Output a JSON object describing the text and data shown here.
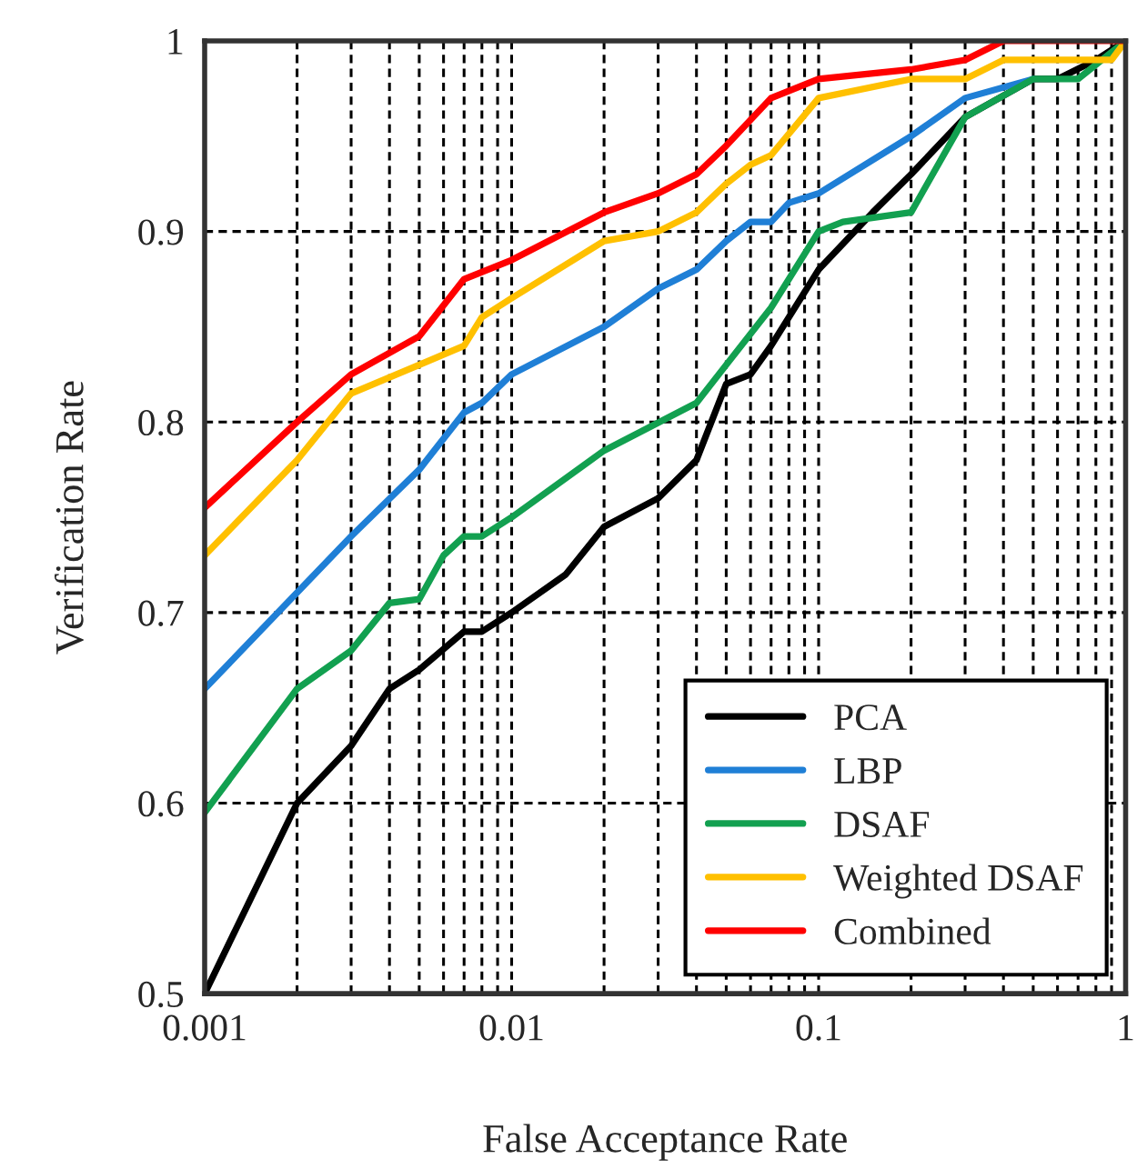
{
  "chart_data": {
    "type": "line",
    "xlabel": "False Acceptance Rate",
    "ylabel": "Verification Rate",
    "log": "x",
    "grid": true,
    "legend": "bottom right",
    "line_style": "solid",
    "marker": "none",
    "xlim": [
      0.001,
      1
    ],
    "ylim": [
      0.5,
      1
    ],
    "xticks": [
      0.001,
      {
        "value": 0.002,
        "label": null
      },
      {
        "value": 0.003,
        "label": null
      },
      {
        "value": 0.004,
        "label": null
      },
      {
        "value": 0.005,
        "label": null
      },
      {
        "value": 0.006,
        "label": null
      },
      {
        "value": 0.007,
        "label": null
      },
      {
        "value": 0.008,
        "label": null
      },
      {
        "value": 0.009,
        "label": null
      },
      0.01,
      {
        "value": 0.02,
        "label": null
      },
      {
        "value": 0.03,
        "label": null
      },
      {
        "value": 0.04,
        "label": null
      },
      {
        "value": 0.05,
        "label": null
      },
      {
        "value": 0.06,
        "label": null
      },
      {
        "value": 0.07,
        "label": null
      },
      {
        "value": 0.08,
        "label": null
      },
      {
        "value": 0.09,
        "label": null
      },
      0.1,
      {
        "value": 0.2,
        "label": null
      },
      {
        "value": 0.3,
        "label": null
      },
      {
        "value": 0.4,
        "label": null
      },
      {
        "value": 0.5,
        "label": null
      },
      {
        "value": 0.6,
        "label": null
      },
      {
        "value": 0.7,
        "label": null
      },
      {
        "value": 0.8,
        "label": null
      },
      {
        "value": 0.9,
        "label": null
      },
      1
    ],
    "yticks": [
      0.5,
      0.6,
      0.7,
      0.8,
      0.9,
      1
    ],
    "series": [
      {
        "name": "PCA",
        "color": "#000000",
        "x": [
          0.001,
          0.002,
          0.003,
          0.004,
          0.005,
          0.007,
          0.008,
          0.01,
          0.015,
          0.02,
          0.03,
          0.04,
          0.05,
          0.06,
          0.07,
          0.1,
          0.15,
          0.2,
          0.3,
          0.5,
          0.6,
          0.8,
          1
        ],
        "values": [
          0.5,
          0.6,
          0.63,
          0.66,
          0.67,
          0.69,
          0.69,
          0.7,
          0.72,
          0.745,
          0.76,
          0.78,
          0.82,
          0.825,
          0.84,
          0.88,
          0.91,
          0.93,
          0.96,
          0.98,
          0.98,
          0.99,
          1
        ]
      },
      {
        "name": "LBP",
        "color": "#1f7fd6",
        "x": [
          0.001,
          0.003,
          0.005,
          0.007,
          0.008,
          0.01,
          0.02,
          0.03,
          0.04,
          0.05,
          0.06,
          0.07,
          0.08,
          0.1,
          0.2,
          0.3,
          0.5
        ],
        "values": [
          0.66,
          0.74,
          0.775,
          0.805,
          0.81,
          0.825,
          0.85,
          0.87,
          0.88,
          0.895,
          0.905,
          0.905,
          0.915,
          0.92,
          0.95,
          0.97,
          0.98
        ]
      },
      {
        "name": "DSAF",
        "color": "#12a050",
        "x": [
          0.001,
          0.002,
          0.003,
          0.004,
          0.005,
          0.006,
          0.007,
          0.008,
          0.01,
          0.02,
          0.04,
          0.05,
          0.07,
          0.1,
          0.12,
          0.2,
          0.3,
          0.5,
          0.7,
          1
        ],
        "values": [
          0.595,
          0.66,
          0.68,
          0.705,
          0.707,
          0.73,
          0.74,
          0.74,
          0.75,
          0.785,
          0.81,
          0.83,
          0.86,
          0.9,
          0.905,
          0.91,
          0.96,
          0.98,
          0.98,
          1
        ]
      },
      {
        "name": "Weighted DSAF",
        "color": "#ffc000",
        "x": [
          0.001,
          0.002,
          0.003,
          0.005,
          0.007,
          0.008,
          0.01,
          0.02,
          0.03,
          0.04,
          0.05,
          0.06,
          0.07,
          0.1,
          0.2,
          0.3,
          0.4,
          0.8,
          0.9,
          1
        ],
        "values": [
          0.73,
          0.78,
          0.815,
          0.83,
          0.84,
          0.855,
          0.865,
          0.895,
          0.9,
          0.91,
          0.925,
          0.935,
          0.94,
          0.97,
          0.98,
          0.98,
          0.99,
          0.99,
          0.99,
          1
        ]
      },
      {
        "name": "Combined",
        "color": "#ff0000",
        "x": [
          0.001,
          0.002,
          0.003,
          0.005,
          0.007,
          0.01,
          0.02,
          0.03,
          0.04,
          0.05,
          0.07,
          0.1,
          0.2,
          0.3,
          0.4,
          1
        ],
        "values": [
          0.755,
          0.8,
          0.825,
          0.845,
          0.875,
          0.885,
          0.91,
          0.92,
          0.93,
          0.945,
          0.97,
          0.98,
          0.985,
          0.99,
          1,
          1
        ]
      }
    ]
  }
}
